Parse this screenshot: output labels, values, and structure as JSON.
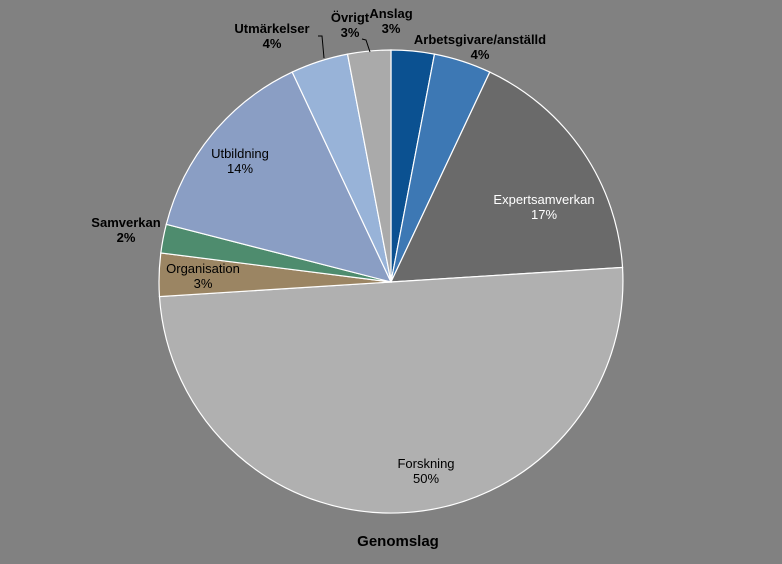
{
  "chart_data": {
    "type": "pie",
    "title": "Genomslag",
    "slices": [
      {
        "name": "Anslag",
        "value": 3,
        "label": "3%",
        "color": "#0b5191"
      },
      {
        "name": "Arbetsgivare/anställd",
        "value": 4,
        "label": "4%",
        "color": "#3d78b4"
      },
      {
        "name": "Expertsamverkan",
        "value": 17,
        "label": "17%",
        "color": "#6a6a6a"
      },
      {
        "name": "Forskning",
        "value": 50,
        "label": "50%",
        "color": "#b0b0b0"
      },
      {
        "name": "Organisation",
        "value": 3,
        "label": "3%",
        "color": "#9b8563"
      },
      {
        "name": "Samverkan",
        "value": 2,
        "label": "2%",
        "color": "#4e8c6e"
      },
      {
        "name": "Utbildning",
        "value": 14,
        "label": "14%",
        "color": "#8a9ec4"
      },
      {
        "name": "Utmärkelser",
        "value": 4,
        "label": "4%",
        "color": "#98b3d8"
      },
      {
        "name": "Övrigt",
        "value": 3,
        "label": "3%",
        "color": "#aaaaaa"
      }
    ]
  }
}
